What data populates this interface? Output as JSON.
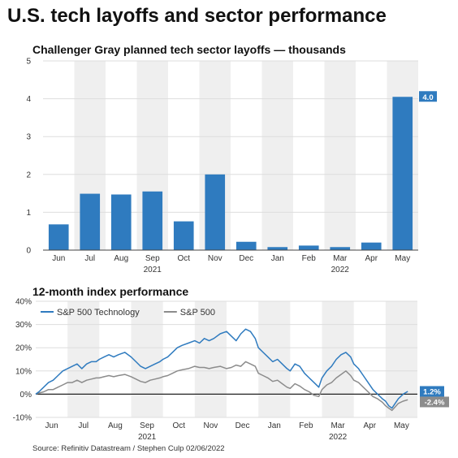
{
  "title": "U.S. tech layoffs and sector performance",
  "source": "Source: Refinitiv Datastream / Stephen Culp 02/06/2022",
  "colors": {
    "tech": "#2f7bbf",
    "sp500": "#8c8c8c",
    "band": "#efefef",
    "grid": "#dddddd",
    "axis": "#444444"
  },
  "chart_data": [
    {
      "type": "bar",
      "title": "Challenger Gray planned tech sector layoffs — thousands",
      "categories": [
        "Jun",
        "Jul",
        "Aug",
        "Sep",
        "Oct",
        "Nov",
        "Dec",
        "Jan",
        "Feb",
        "Mar",
        "Apr",
        "May"
      ],
      "year_labels": [
        {
          "text": "2021",
          "under": "Sep"
        },
        {
          "text": "2022",
          "under": "Mar"
        }
      ],
      "values": [
        0.68,
        1.49,
        1.47,
        1.55,
        0.76,
        2.0,
        0.22,
        0.08,
        0.12,
        0.08,
        0.2,
        4.05
      ],
      "yticks": [
        "0",
        "1",
        "2",
        "3",
        "4",
        "5"
      ],
      "ylim": [
        0,
        5
      ],
      "grid": true,
      "end_label": "4.0",
      "color": "#2f7bbf"
    },
    {
      "type": "line",
      "title": "12-month index performance",
      "x_labels": [
        "Jun",
        "Jul",
        "Aug",
        "Sep",
        "Oct",
        "Nov",
        "Dec",
        "Jan",
        "Feb",
        "Mar",
        "Apr",
        "May"
      ],
      "year_labels": [
        {
          "text": "2021",
          "under": "Sep"
        },
        {
          "text": "2022",
          "under": "Mar"
        }
      ],
      "yticks": [
        "-10%",
        "0%",
        "10%",
        "20%",
        "30%",
        "40%"
      ],
      "ylim": [
        -10,
        40
      ],
      "legend_position": "top-left",
      "grid": true,
      "series": [
        {
          "name": "S&P 500 Technology",
          "color": "#2f7bbf",
          "end_label": "1.2%",
          "points": [
            [
              0,
              0
            ],
            [
              0.1,
              1
            ],
            [
              0.25,
              3
            ],
            [
              0.4,
              5
            ],
            [
              0.55,
              6
            ],
            [
              0.7,
              8
            ],
            [
              0.85,
              10
            ],
            [
              1,
              11
            ],
            [
              1.15,
              12
            ],
            [
              1.3,
              13
            ],
            [
              1.45,
              11
            ],
            [
              1.6,
              13
            ],
            [
              1.75,
              14
            ],
            [
              1.9,
              14
            ],
            [
              2,
              15
            ],
            [
              2.15,
              16
            ],
            [
              2.3,
              17
            ],
            [
              2.45,
              16
            ],
            [
              2.6,
              17
            ],
            [
              2.8,
              18
            ],
            [
              3,
              16
            ],
            [
              3.15,
              14
            ],
            [
              3.3,
              12
            ],
            [
              3.45,
              11
            ],
            [
              3.6,
              12
            ],
            [
              3.75,
              13
            ],
            [
              3.9,
              14
            ],
            [
              4,
              15
            ],
            [
              4.15,
              16
            ],
            [
              4.3,
              18
            ],
            [
              4.45,
              20
            ],
            [
              4.6,
              21
            ],
            [
              4.8,
              22
            ],
            [
              5,
              23
            ],
            [
              5.15,
              22
            ],
            [
              5.3,
              24
            ],
            [
              5.45,
              23
            ],
            [
              5.6,
              24
            ],
            [
              5.8,
              26
            ],
            [
              6,
              27
            ],
            [
              6.15,
              25
            ],
            [
              6.3,
              23
            ],
            [
              6.45,
              26
            ],
            [
              6.6,
              28
            ],
            [
              6.75,
              27
            ],
            [
              6.9,
              24
            ],
            [
              7,
              20
            ],
            [
              7.15,
              18
            ],
            [
              7.3,
              16
            ],
            [
              7.45,
              14
            ],
            [
              7.6,
              15
            ],
            [
              7.75,
              13
            ],
            [
              7.9,
              11
            ],
            [
              8,
              10
            ],
            [
              8.15,
              13
            ],
            [
              8.3,
              12
            ],
            [
              8.45,
              9
            ],
            [
              8.6,
              7
            ],
            [
              8.75,
              5
            ],
            [
              8.9,
              3
            ],
            [
              9,
              7
            ],
            [
              9.15,
              10
            ],
            [
              9.3,
              12
            ],
            [
              9.45,
              15
            ],
            [
              9.6,
              17
            ],
            [
              9.75,
              18
            ],
            [
              9.9,
              16
            ],
            [
              10,
              13
            ],
            [
              10.15,
              11
            ],
            [
              10.3,
              8
            ],
            [
              10.45,
              5
            ],
            [
              10.6,
              2
            ],
            [
              10.75,
              0
            ],
            [
              10.9,
              -2
            ],
            [
              11,
              -3
            ],
            [
              11.1,
              -5
            ],
            [
              11.2,
              -6
            ],
            [
              11.3,
              -4
            ],
            [
              11.4,
              -2
            ],
            [
              11.55,
              0
            ],
            [
              11.7,
              1.2
            ]
          ]
        },
        {
          "name": "S&P 500",
          "color": "#8c8c8c",
          "end_label": "-2.4%",
          "points": [
            [
              0,
              0
            ],
            [
              0.1,
              0.5
            ],
            [
              0.25,
              1
            ],
            [
              0.4,
              2
            ],
            [
              0.55,
              2
            ],
            [
              0.7,
              3
            ],
            [
              0.85,
              4
            ],
            [
              1,
              5
            ],
            [
              1.15,
              5
            ],
            [
              1.3,
              6
            ],
            [
              1.45,
              5
            ],
            [
              1.6,
              6
            ],
            [
              1.75,
              6.5
            ],
            [
              1.9,
              7
            ],
            [
              2,
              7
            ],
            [
              2.15,
              7.5
            ],
            [
              2.3,
              8
            ],
            [
              2.45,
              7.5
            ],
            [
              2.6,
              8
            ],
            [
              2.8,
              8.5
            ],
            [
              3,
              7.5
            ],
            [
              3.15,
              6.5
            ],
            [
              3.3,
              5.5
            ],
            [
              3.45,
              5
            ],
            [
              3.6,
              6
            ],
            [
              3.75,
              6.5
            ],
            [
              3.9,
              7
            ],
            [
              4,
              7.5
            ],
            [
              4.15,
              8
            ],
            [
              4.3,
              9
            ],
            [
              4.45,
              10
            ],
            [
              4.6,
              10.5
            ],
            [
              4.8,
              11
            ],
            [
              5,
              12
            ],
            [
              5.15,
              11.5
            ],
            [
              5.3,
              11.5
            ],
            [
              5.45,
              11
            ],
            [
              5.6,
              11.5
            ],
            [
              5.8,
              12
            ],
            [
              6,
              11
            ],
            [
              6.15,
              11.5
            ],
            [
              6.3,
              12.5
            ],
            [
              6.45,
              12
            ],
            [
              6.6,
              14
            ],
            [
              6.75,
              13
            ],
            [
              6.9,
              12
            ],
            [
              7,
              9
            ],
            [
              7.15,
              8
            ],
            [
              7.3,
              7
            ],
            [
              7.45,
              5.5
            ],
            [
              7.6,
              6
            ],
            [
              7.75,
              4.5
            ],
            [
              7.9,
              3
            ],
            [
              8,
              2.5
            ],
            [
              8.15,
              4.5
            ],
            [
              8.3,
              3.5
            ],
            [
              8.45,
              2
            ],
            [
              8.6,
              1
            ],
            [
              8.75,
              -0.5
            ],
            [
              8.9,
              -1
            ],
            [
              9,
              2
            ],
            [
              9.15,
              4
            ],
            [
              9.3,
              5
            ],
            [
              9.45,
              7
            ],
            [
              9.6,
              8.5
            ],
            [
              9.75,
              10
            ],
            [
              9.9,
              8
            ],
            [
              10,
              6
            ],
            [
              10.15,
              5
            ],
            [
              10.3,
              3
            ],
            [
              10.45,
              1
            ],
            [
              10.6,
              -1
            ],
            [
              10.75,
              -2
            ],
            [
              10.9,
              -3.5
            ],
            [
              11,
              -5
            ],
            [
              11.1,
              -6
            ],
            [
              11.2,
              -7
            ],
            [
              11.3,
              -5.5
            ],
            [
              11.4,
              -4
            ],
            [
              11.55,
              -3
            ],
            [
              11.7,
              -2.4
            ]
          ]
        }
      ]
    }
  ]
}
